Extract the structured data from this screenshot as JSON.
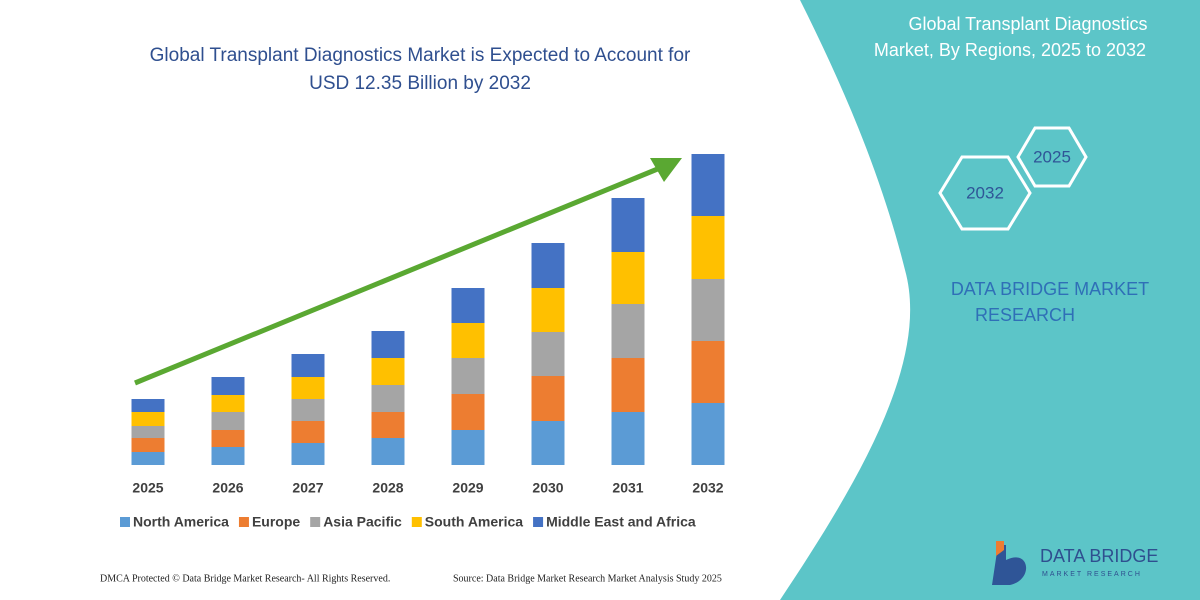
{
  "chart_data": {
    "type": "bar",
    "stacked": true,
    "title": "Global Transplant Diagnostics Market is Expected to Account for",
    "subtitle": "USD 12.35 Billion by 2032",
    "categories": [
      "2025",
      "2026",
      "2027",
      "2028",
      "2029",
      "2030",
      "2031",
      "2032"
    ],
    "series": [
      {
        "name": "North America",
        "color": "#5b9bd5",
        "values": [
          13,
          18,
          22,
          27,
          35,
          44,
          53,
          62
        ]
      },
      {
        "name": "Europe",
        "color": "#ed7d31",
        "values": [
          14,
          17,
          22,
          26,
          36,
          45,
          54,
          62
        ]
      },
      {
        "name": "Asia Pacific",
        "color": "#a5a5a5",
        "values": [
          12,
          18,
          22,
          27,
          36,
          44,
          54,
          62
        ]
      },
      {
        "name": "South America",
        "color": "#ffc000",
        "values": [
          14,
          17,
          22,
          27,
          35,
          44,
          52,
          63
        ]
      },
      {
        "name": "Middle East and Africa",
        "color": "#4472c4",
        "values": [
          13,
          18,
          23,
          27,
          35,
          45,
          54,
          62
        ]
      }
    ],
    "ylim": [
      0,
      320
    ]
  },
  "panel": {
    "title_line1": "Global Transplant Diagnostics",
    "title_line2": "Market, By Regions, 2025 to 2032",
    "hex_start": "2025",
    "hex_end": "2032",
    "brand_line1": "DATA BRIDGE MARKET",
    "brand_line2": "RESEARCH"
  },
  "footer": {
    "left": "DMCA Protected © Data Bridge Market Research-  All Rights Reserved.",
    "right": "Source: Data Bridge Market Research  Market Analysis Study 2025"
  },
  "logo": {
    "name": "DATA BRIDGE",
    "tagline": "MARKET RESEARCH"
  }
}
